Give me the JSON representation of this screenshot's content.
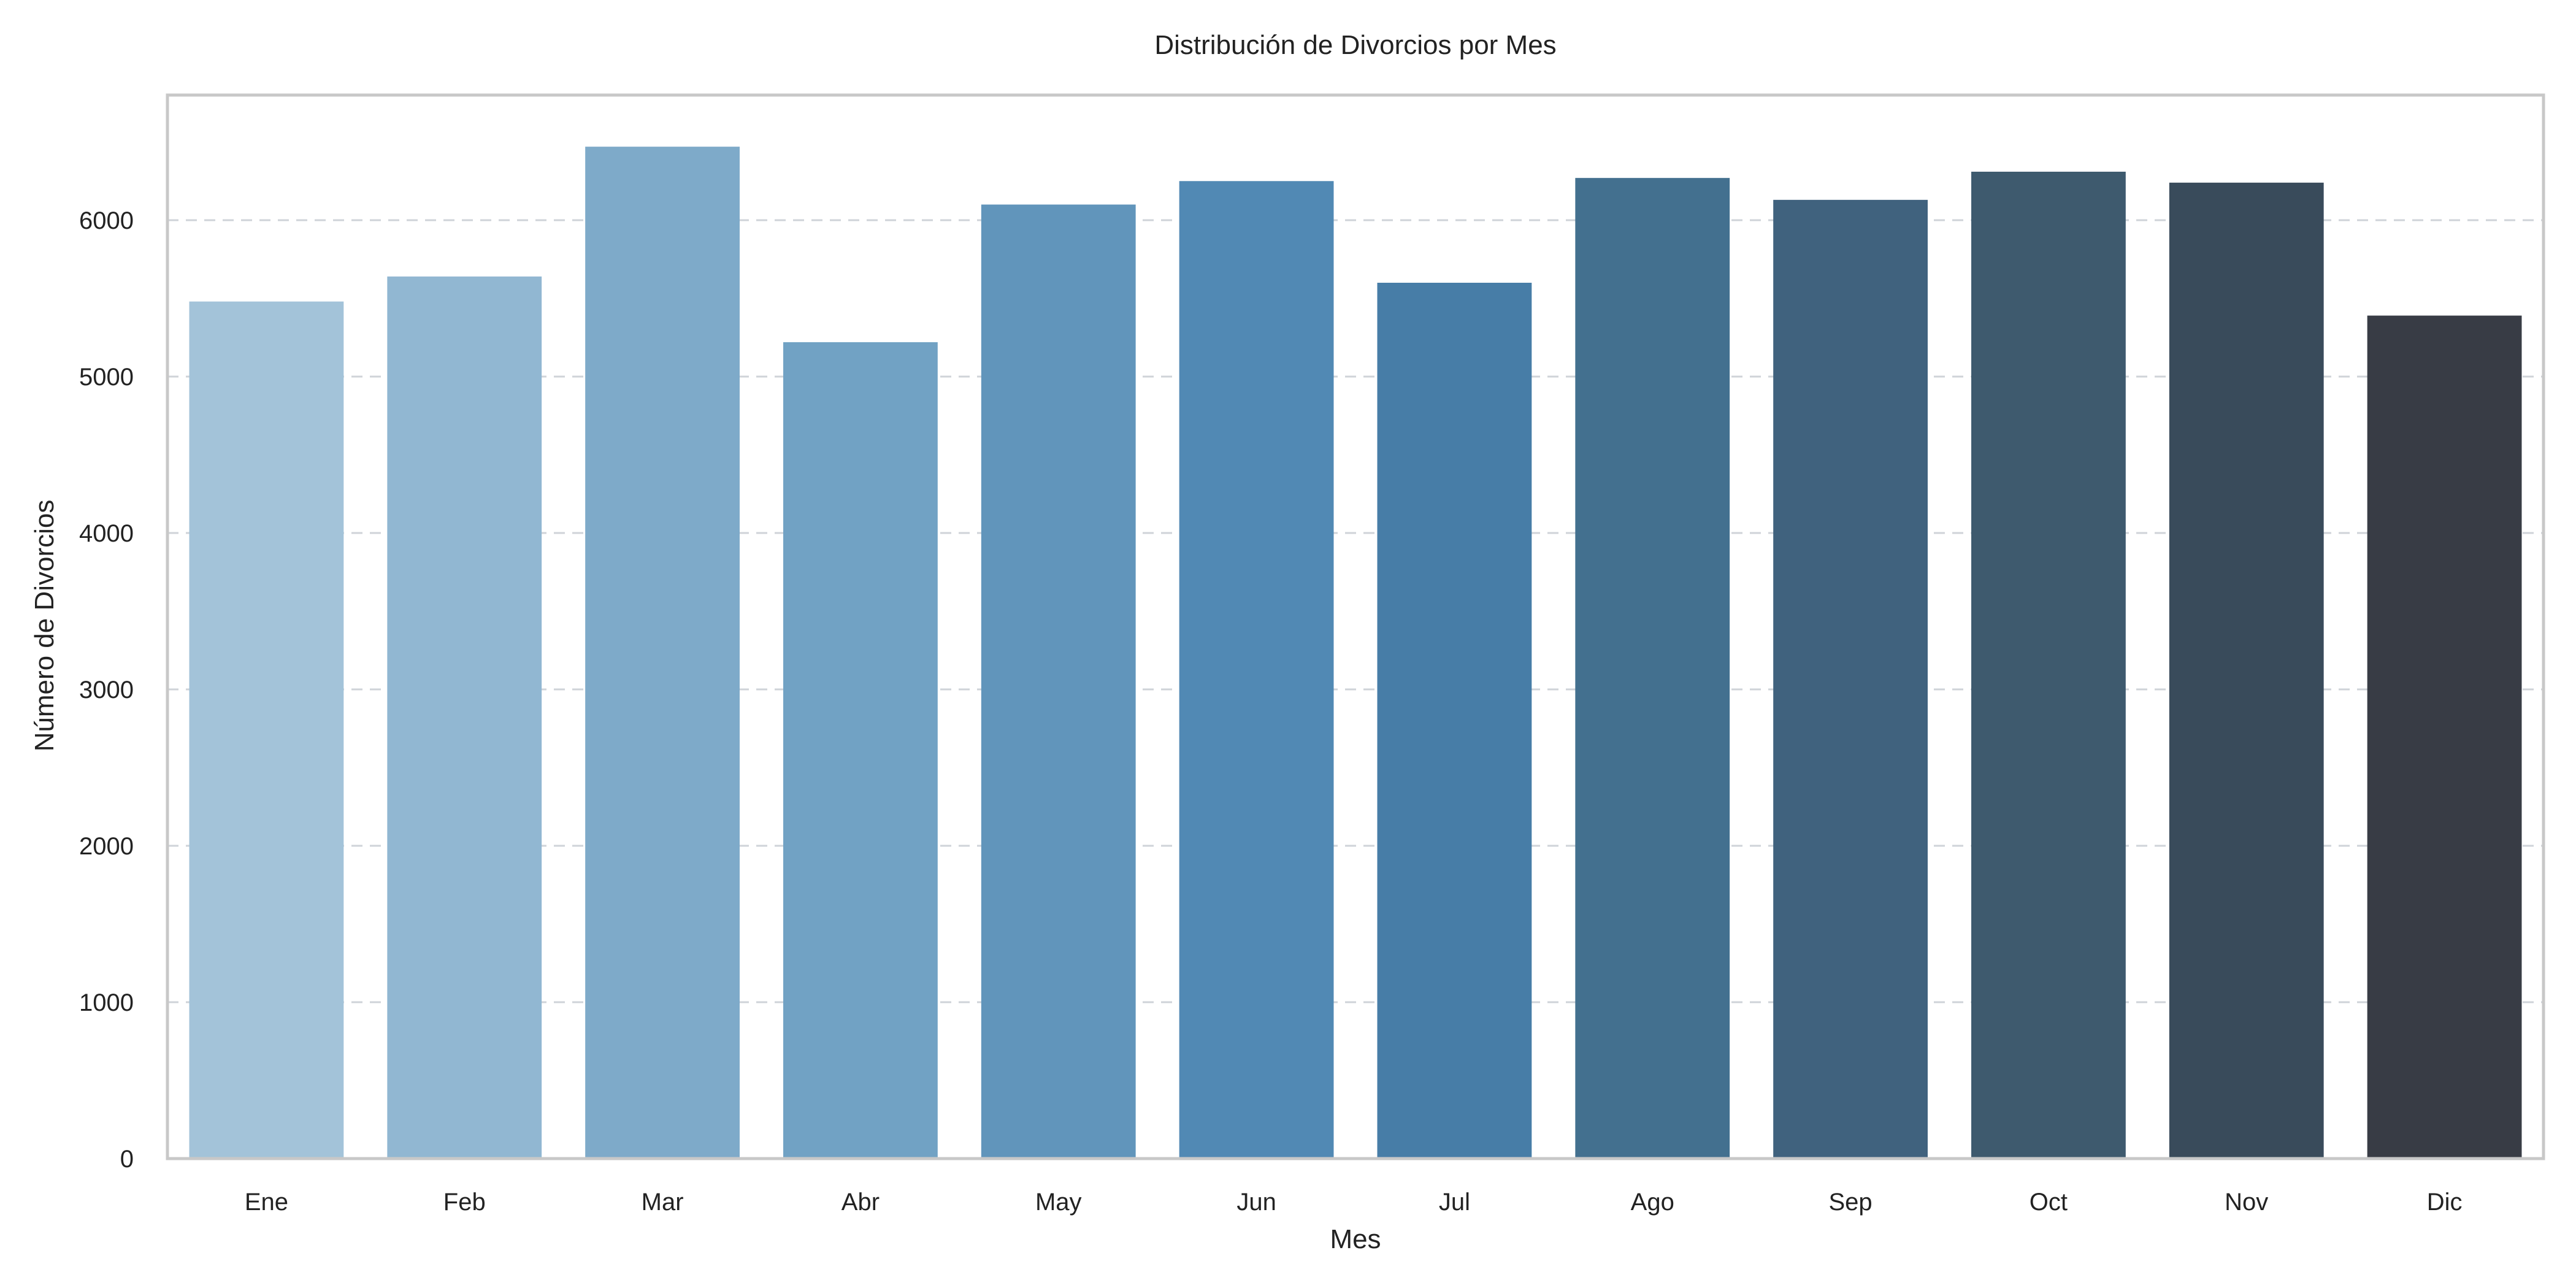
{
  "chart_data": {
    "type": "bar",
    "title": "Distribución de Divorcios por Mes",
    "xlabel": "Mes",
    "ylabel": "Número de Divorcios",
    "categories": [
      "Ene",
      "Feb",
      "Mar",
      "Abr",
      "May",
      "Jun",
      "Jul",
      "Ago",
      "Sep",
      "Oct",
      "Nov",
      "Dic"
    ],
    "values": [
      5480,
      5640,
      6470,
      5220,
      6100,
      6250,
      5600,
      6270,
      6130,
      6310,
      6240,
      5390
    ],
    "colors": [
      "#a3c3d9",
      "#91b7d2",
      "#7eaac9",
      "#71a2c4",
      "#6195bb",
      "#5189b4",
      "#477da7",
      "#43708f",
      "#40627e",
      "#3e5a6e",
      "#394b5b",
      "#383c45"
    ],
    "yticks": [
      0,
      1000,
      2000,
      3000,
      4000,
      5000,
      6000
    ],
    "ylim": [
      0,
      6800
    ],
    "grid": "y-dashed",
    "legend": "none"
  }
}
